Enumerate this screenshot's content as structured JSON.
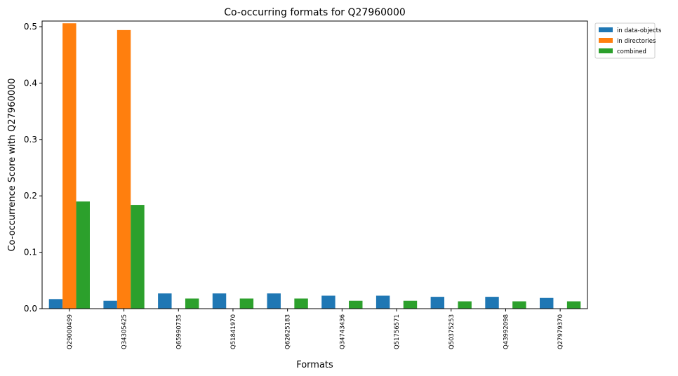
{
  "chart_data": {
    "type": "bar",
    "title": "Co-occurring formats for Q27960000",
    "xlabel": "Formats",
    "ylabel": "Co-occurrence Score with Q27960000",
    "ylim": [
      0,
      0.51
    ],
    "yticks": [
      "0.0",
      "0.1",
      "0.2",
      "0.3",
      "0.4",
      "0.5"
    ],
    "grid": false,
    "legend_position": "outside-top-right",
    "categories": [
      "Q29000499",
      "Q34305425",
      "Q65990735",
      "Q51841970",
      "Q62625183",
      "Q34743436",
      "Q51756571",
      "Q50375253",
      "Q43992098",
      "Q27979370"
    ],
    "series": [
      {
        "name": "in data-objects",
        "color": "#1f77b4",
        "values": [
          0.017,
          0.014,
          0.027,
          0.027,
          0.027,
          0.023,
          0.023,
          0.021,
          0.021,
          0.019
        ]
      },
      {
        "name": "in directories",
        "color": "#ff7f0e",
        "values": [
          0.506,
          0.494,
          0,
          0,
          0,
          0,
          0,
          0,
          0,
          0
        ]
      },
      {
        "name": "combined",
        "color": "#2ca02c",
        "values": [
          0.19,
          0.184,
          0.018,
          0.018,
          0.018,
          0.014,
          0.014,
          0.013,
          0.013,
          0.013
        ]
      }
    ]
  }
}
